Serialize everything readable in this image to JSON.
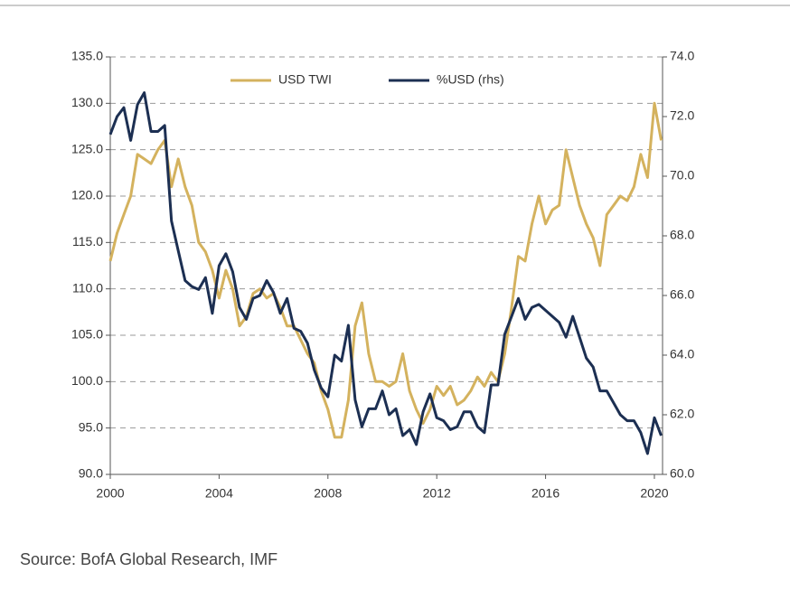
{
  "chart_data": {
    "type": "line",
    "source": "Source: BofA Global Research, IMF",
    "legend": "top",
    "grid": true,
    "xlim": [
      2000,
      2020.3
    ],
    "xticks": [
      2000,
      2004,
      2008,
      2012,
      2016,
      2020
    ],
    "ylim": [
      90,
      135
    ],
    "yticks": [
      {
        "value": 90,
        "label": "90.0"
      },
      {
        "value": 95,
        "label": "95.0"
      },
      {
        "value": 100,
        "label": "100.0"
      },
      {
        "value": 105,
        "label": "105.0"
      },
      {
        "value": 110,
        "label": "110.0"
      },
      {
        "value": 115,
        "label": "115.0"
      },
      {
        "value": 120,
        "label": "120.0"
      },
      {
        "value": 125,
        "label": "125.0"
      },
      {
        "value": 130,
        "label": "130.0"
      },
      {
        "value": 135,
        "label": "135.0"
      }
    ],
    "y2lim": [
      60,
      74
    ],
    "y2ticks": [
      {
        "value": 60,
        "label": "60.0"
      },
      {
        "value": 62,
        "label": "62.0"
      },
      {
        "value": 64,
        "label": "64.0"
      },
      {
        "value": 66,
        "label": "66.0"
      },
      {
        "value": 68,
        "label": "68.0"
      },
      {
        "value": 70,
        "label": "70.0"
      },
      {
        "value": 72,
        "label": "72.0"
      },
      {
        "value": 74,
        "label": "74.0"
      }
    ],
    "x": [
      2000,
      2000.25,
      2000.5,
      2000.75,
      2001,
      2001.25,
      2001.5,
      2001.75,
      2002,
      2002.25,
      2002.5,
      2002.75,
      2003,
      2003.25,
      2003.5,
      2003.75,
      2004,
      2004.25,
      2004.5,
      2004.75,
      2005,
      2005.25,
      2005.5,
      2005.75,
      2006,
      2006.25,
      2006.5,
      2006.75,
      2007,
      2007.25,
      2007.5,
      2007.75,
      2008,
      2008.25,
      2008.5,
      2008.75,
      2009,
      2009.25,
      2009.5,
      2009.75,
      2010,
      2010.25,
      2010.5,
      2010.75,
      2011,
      2011.25,
      2011.5,
      2011.75,
      2012,
      2012.25,
      2012.5,
      2012.75,
      2013,
      2013.25,
      2013.5,
      2013.75,
      2014,
      2014.25,
      2014.5,
      2014.75,
      2015,
      2015.25,
      2015.5,
      2015.75,
      2016,
      2016.25,
      2016.5,
      2016.75,
      2017,
      2017.25,
      2017.5,
      2017.75,
      2018,
      2018.25,
      2018.5,
      2018.75,
      2019,
      2019.25,
      2019.5,
      2019.75,
      2020,
      2020.25
    ],
    "series": [
      {
        "name": "USD TWI",
        "color": "#d4b25e",
        "values": [
          113,
          116,
          118,
          120,
          124.5,
          124,
          123.5,
          125,
          126,
          121,
          124,
          121,
          119,
          115,
          114,
          112,
          109,
          112,
          110,
          106,
          107,
          109.5,
          110,
          109,
          109.5,
          108,
          106,
          106,
          104.5,
          103,
          102,
          99,
          97,
          94,
          94,
          98,
          106,
          108.5,
          103,
          100,
          100,
          99.5,
          100,
          103,
          99,
          97,
          95.5,
          97,
          99.5,
          98.5,
          99.5,
          97.5,
          98,
          99,
          100.5,
          99.5,
          101,
          100,
          103,
          108,
          113.5,
          113,
          117,
          120,
          117,
          118.5,
          119,
          125,
          122,
          119,
          117,
          115.5,
          112.5,
          118,
          119,
          120,
          119.5,
          121,
          124.5,
          122,
          130,
          126
        ]
      },
      {
        "name": "%USD (rhs)",
        "color": "#1c2f52",
        "axis": "y2",
        "values": [
          71.4,
          72.0,
          72.3,
          71.2,
          72.4,
          72.8,
          71.5,
          71.5,
          71.7,
          68.5,
          67.5,
          66.5,
          66.3,
          66.2,
          66.6,
          65.4,
          67,
          67.4,
          66.8,
          65.6,
          65.2,
          65.9,
          66,
          66.5,
          66.1,
          65.4,
          65.9,
          64.9,
          64.8,
          64.4,
          63.5,
          62.9,
          62.6,
          64,
          63.8,
          65,
          62.5,
          61.6,
          62.2,
          62.2,
          62.8,
          62,
          62.2,
          61.3,
          61.5,
          61,
          62.1,
          62.7,
          61.9,
          61.8,
          61.5,
          61.6,
          62.1,
          62.1,
          61.6,
          61.4,
          63,
          63,
          64.7,
          65.3,
          65.9,
          65.2,
          65.6,
          65.7,
          65.5,
          65.3,
          65.1,
          64.6,
          65.3,
          64.6,
          63.9,
          63.6,
          62.8,
          62.8,
          62.4,
          62.0,
          61.8,
          61.8,
          61.4,
          60.7,
          61.9,
          61.3
        ]
      }
    ]
  }
}
